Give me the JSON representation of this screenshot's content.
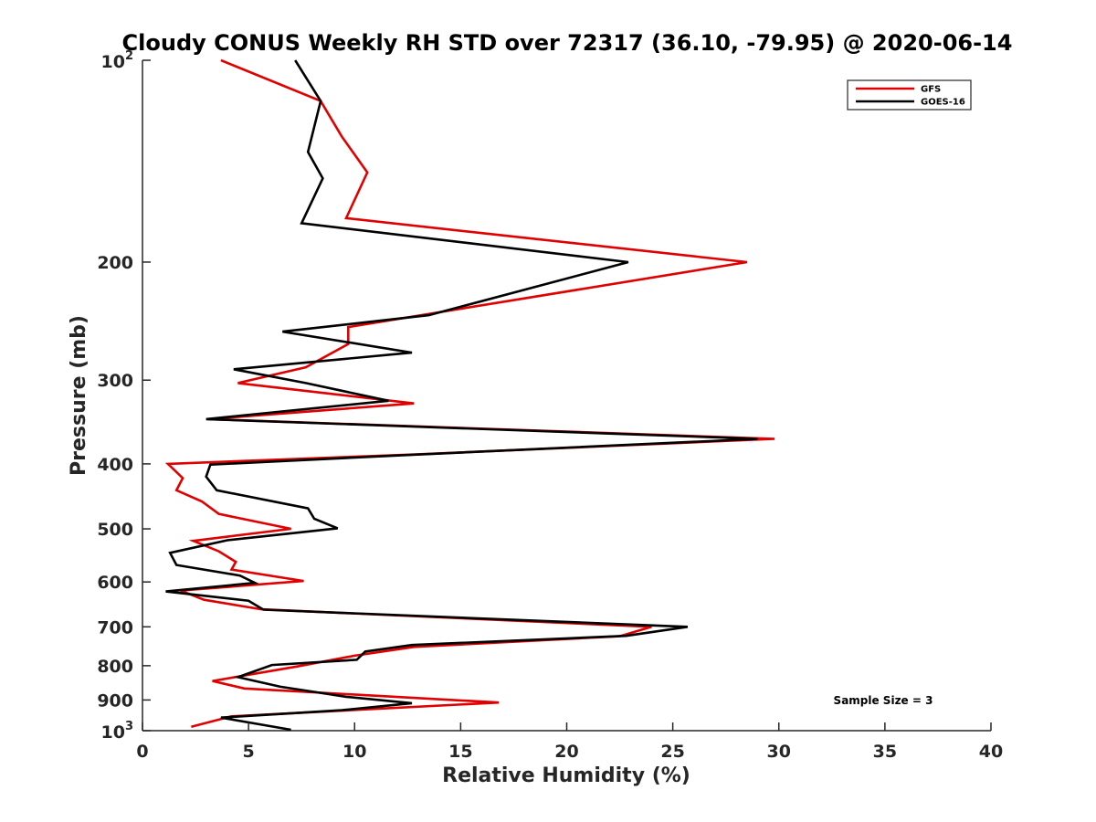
{
  "chart_data": {
    "type": "line",
    "title": "Cloudy CONUS Weekly RH STD over 72317 (36.10, -79.95) @ 2020-06-14",
    "xlabel": "Relative Humidity (%)",
    "ylabel": "Pressure (mb)",
    "xlim": [
      0,
      40
    ],
    "ylim": [
      100,
      1000
    ],
    "y_scale": "log",
    "y_reversed": true,
    "x_ticks": [
      "0",
      "5",
      "10",
      "15",
      "20",
      "25",
      "30",
      "35",
      "40"
    ],
    "y_ticks": [
      {
        "value": 100,
        "label": "10",
        "sup": "2"
      },
      {
        "value": 200,
        "label": "200",
        "sup": ""
      },
      {
        "value": 300,
        "label": "300",
        "sup": ""
      },
      {
        "value": 400,
        "label": "400",
        "sup": ""
      },
      {
        "value": 500,
        "label": "500",
        "sup": ""
      },
      {
        "value": 600,
        "label": "600",
        "sup": ""
      },
      {
        "value": 700,
        "label": "700",
        "sup": ""
      },
      {
        "value": 800,
        "label": "800",
        "sup": ""
      },
      {
        "value": 900,
        "label": "900",
        "sup": ""
      },
      {
        "value": 1000,
        "label": "10",
        "sup": "3"
      }
    ],
    "grid": false,
    "legend_position": "top-right",
    "annotation": "Sample Size = 3",
    "series": [
      {
        "name": "GFS",
        "color": "#e00000",
        "points": [
          [
            3.7,
            100
          ],
          [
            8.4,
            115
          ],
          [
            9.4,
            130
          ],
          [
            10.6,
            147
          ],
          [
            9.6,
            172
          ],
          [
            28.5,
            200
          ],
          [
            9.7,
            250
          ],
          [
            9.7,
            265
          ],
          [
            7.7,
            287
          ],
          [
            4.5,
            303
          ],
          [
            12.8,
            325
          ],
          [
            3.1,
            343
          ],
          [
            29.8,
            367
          ],
          [
            13.0,
            387
          ],
          [
            1.2,
            400
          ],
          [
            1.9,
            420
          ],
          [
            1.6,
            438
          ],
          [
            2.8,
            455
          ],
          [
            3.6,
            475
          ],
          [
            7.0,
            500
          ],
          [
            2.4,
            521
          ],
          [
            3.6,
            540
          ],
          [
            4.4,
            560
          ],
          [
            4.2,
            575
          ],
          [
            7.6,
            598
          ],
          [
            1.8,
            618
          ],
          [
            2.9,
            638
          ],
          [
            5.6,
            659
          ],
          [
            24.0,
            700
          ],
          [
            22.5,
            723
          ],
          [
            12.8,
            750
          ],
          [
            10.0,
            773
          ],
          [
            7.3,
            802
          ],
          [
            3.3,
            843
          ],
          [
            4.8,
            865
          ],
          [
            16.8,
            908
          ],
          [
            4.2,
            952
          ],
          [
            2.3,
            987
          ]
        ]
      },
      {
        "name": "GOES-16",
        "color": "#000000",
        "points": [
          [
            7.2,
            100
          ],
          [
            8.4,
            115
          ],
          [
            7.8,
            137
          ],
          [
            8.5,
            150
          ],
          [
            7.5,
            175
          ],
          [
            22.9,
            200
          ],
          [
            13.5,
            240
          ],
          [
            6.6,
            254
          ],
          [
            12.7,
            273
          ],
          [
            4.3,
            289
          ],
          [
            7.7,
            303
          ],
          [
            11.6,
            322
          ],
          [
            3.0,
            343
          ],
          [
            29.0,
            367
          ],
          [
            12.5,
            388
          ],
          [
            3.2,
            401
          ],
          [
            3.0,
            418
          ],
          [
            3.5,
            438
          ],
          [
            7.8,
            466
          ],
          [
            8.1,
            483
          ],
          [
            9.2,
            499
          ],
          [
            4.0,
            520
          ],
          [
            1.3,
            543
          ],
          [
            1.6,
            566
          ],
          [
            4.6,
            587
          ],
          [
            5.3,
            602
          ],
          [
            1.1,
            620
          ],
          [
            5.0,
            640
          ],
          [
            5.7,
            660
          ],
          [
            25.7,
            700
          ],
          [
            22.8,
            722
          ],
          [
            12.7,
            745
          ],
          [
            10.5,
            762
          ],
          [
            10.1,
            784
          ],
          [
            6.1,
            798
          ],
          [
            4.5,
            832
          ],
          [
            6.5,
            860
          ],
          [
            9.6,
            890
          ],
          [
            12.7,
            910
          ],
          [
            9.4,
            932
          ],
          [
            3.7,
            956
          ],
          [
            7.0,
            997
          ]
        ]
      }
    ]
  }
}
